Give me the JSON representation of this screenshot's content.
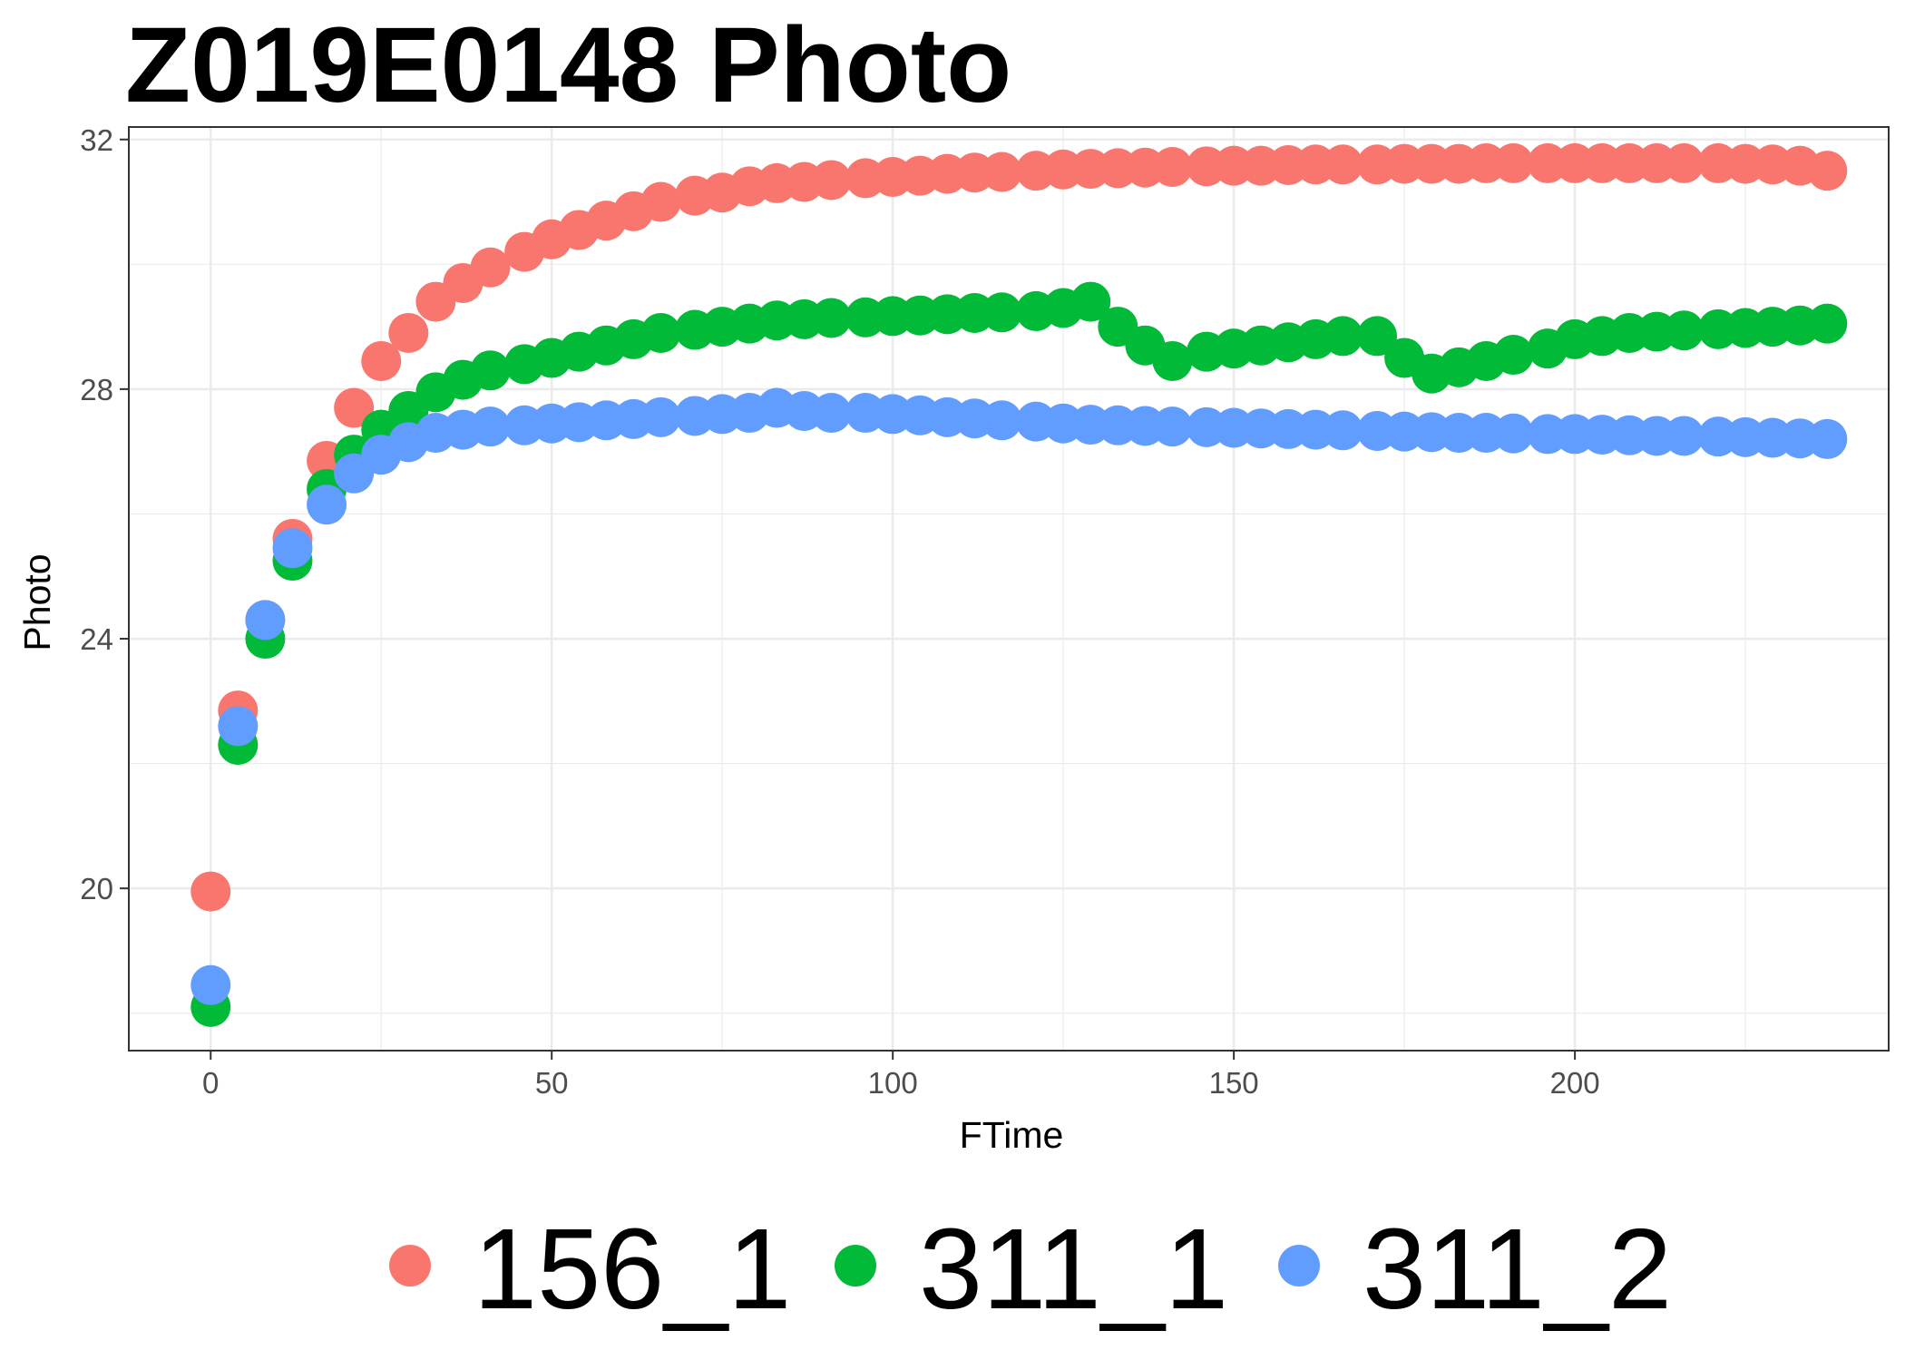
{
  "chart_data": {
    "type": "scatter",
    "title": "Z019E0148 Photo",
    "xlabel": "FTime",
    "ylabel": "Photo",
    "xlim": [
      -12,
      246
    ],
    "ylim": [
      17.4,
      32.2
    ],
    "x_ticks": [
      0,
      50,
      100,
      150,
      200
    ],
    "x_tick_labels": [
      "0",
      "50",
      "100",
      "150",
      "200"
    ],
    "y_ticks": [
      20,
      24,
      28,
      32
    ],
    "y_tick_labels": [
      "20",
      "24",
      "28",
      "32"
    ],
    "grid": true,
    "legend_position": "bottom",
    "series": [
      {
        "name": "156_1",
        "color": "#F8766D",
        "x": [
          0,
          4,
          8,
          12,
          17,
          21,
          25,
          29,
          33,
          37,
          41,
          46,
          50,
          54,
          58,
          62,
          66,
          71,
          75,
          79,
          83,
          87,
          91,
          96,
          100,
          104,
          108,
          112,
          116,
          121,
          125,
          129,
          133,
          137,
          141,
          146,
          150,
          154,
          158,
          162,
          166,
          171,
          175,
          179,
          183,
          187,
          191,
          196,
          200,
          204,
          208,
          212,
          216,
          221,
          225,
          229,
          233,
          237
        ],
        "values": [
          19.95,
          22.85,
          24.3,
          25.6,
          26.85,
          27.7,
          28.45,
          28.9,
          29.4,
          29.7,
          29.95,
          30.2,
          30.4,
          30.55,
          30.7,
          30.85,
          31.0,
          31.1,
          31.15,
          31.25,
          31.3,
          31.32,
          31.35,
          31.38,
          31.4,
          31.42,
          31.45,
          31.47,
          31.48,
          31.5,
          31.52,
          31.53,
          31.54,
          31.55,
          31.56,
          31.57,
          31.58,
          31.58,
          31.59,
          31.6,
          31.6,
          31.6,
          31.61,
          31.61,
          31.61,
          31.62,
          31.62,
          31.62,
          31.62,
          31.62,
          31.62,
          31.62,
          31.62,
          31.62,
          31.61,
          31.6,
          31.58,
          31.5
        ]
      },
      {
        "name": "311_1",
        "color": "#00BA38",
        "x": [
          0,
          4,
          8,
          12,
          17,
          21,
          25,
          29,
          33,
          37,
          41,
          46,
          50,
          54,
          58,
          62,
          66,
          71,
          75,
          79,
          83,
          87,
          91,
          96,
          100,
          104,
          108,
          112,
          116,
          121,
          125,
          129,
          133,
          137,
          141,
          146,
          150,
          154,
          158,
          162,
          166,
          171,
          175,
          179,
          183,
          187,
          191,
          196,
          200,
          204,
          208,
          212,
          216,
          221,
          225,
          229,
          233,
          237
        ],
        "values": [
          18.1,
          22.3,
          24.0,
          25.25,
          26.4,
          26.95,
          27.35,
          27.65,
          27.95,
          28.15,
          28.3,
          28.4,
          28.5,
          28.6,
          28.7,
          28.8,
          28.9,
          28.95,
          29.0,
          29.05,
          29.1,
          29.12,
          29.14,
          29.15,
          29.17,
          29.18,
          29.2,
          29.22,
          29.23,
          29.25,
          29.3,
          29.4,
          29.0,
          28.7,
          28.45,
          28.6,
          28.65,
          28.7,
          28.75,
          28.8,
          28.85,
          28.85,
          28.5,
          28.25,
          28.35,
          28.45,
          28.55,
          28.65,
          28.8,
          28.85,
          28.9,
          28.92,
          28.94,
          28.96,
          28.98,
          29.0,
          29.02,
          29.05
        ]
      },
      {
        "name": "311_2",
        "color": "#619CFF",
        "x": [
          0,
          4,
          8,
          12,
          17,
          21,
          25,
          29,
          33,
          37,
          41,
          46,
          50,
          54,
          58,
          62,
          66,
          71,
          75,
          79,
          83,
          87,
          91,
          96,
          100,
          104,
          108,
          112,
          116,
          121,
          125,
          129,
          133,
          137,
          141,
          146,
          150,
          154,
          158,
          162,
          166,
          171,
          175,
          179,
          183,
          187,
          191,
          196,
          200,
          204,
          208,
          212,
          216,
          221,
          225,
          229,
          233,
          237
        ],
        "values": [
          18.45,
          22.6,
          24.3,
          25.45,
          26.15,
          26.65,
          26.95,
          27.15,
          27.3,
          27.35,
          27.4,
          27.42,
          27.45,
          27.47,
          27.5,
          27.52,
          27.55,
          27.57,
          27.6,
          27.62,
          27.7,
          27.65,
          27.62,
          27.62,
          27.6,
          27.58,
          27.55,
          27.53,
          27.5,
          27.48,
          27.45,
          27.43,
          27.42,
          27.41,
          27.4,
          27.39,
          27.38,
          27.37,
          27.36,
          27.35,
          27.34,
          27.33,
          27.32,
          27.31,
          27.3,
          27.3,
          27.29,
          27.28,
          27.28,
          27.27,
          27.26,
          27.25,
          27.25,
          27.24,
          27.23,
          27.22,
          27.21,
          27.2
        ]
      }
    ]
  }
}
